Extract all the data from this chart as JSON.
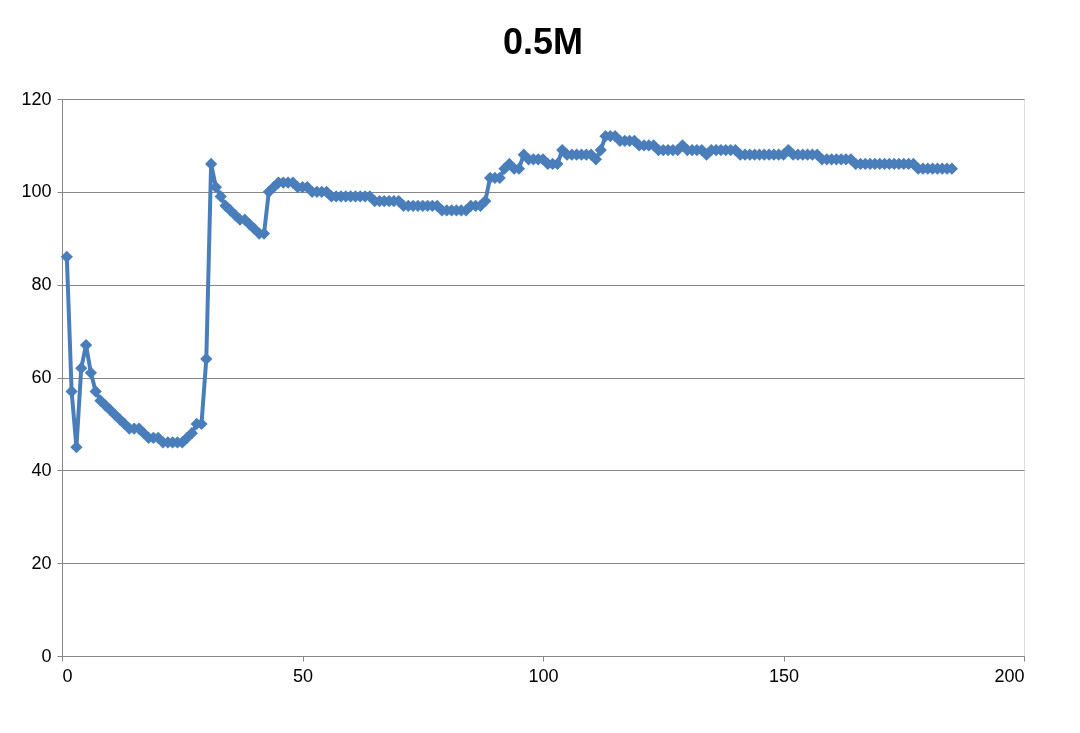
{
  "chart_data": {
    "type": "line",
    "title": "0.5M",
    "x": [
      1,
      2,
      3,
      4,
      5,
      6,
      7,
      8,
      9,
      10,
      11,
      12,
      13,
      14,
      15,
      16,
      17,
      18,
      19,
      20,
      21,
      22,
      23,
      24,
      25,
      26,
      27,
      28,
      29,
      30,
      31,
      32,
      33,
      34,
      35,
      36,
      37,
      38,
      39,
      40,
      41,
      42,
      43,
      44,
      45,
      46,
      47,
      48,
      49,
      50,
      51,
      52,
      53,
      54,
      55,
      56,
      57,
      58,
      59,
      60,
      61,
      62,
      63,
      64,
      65,
      66,
      67,
      68,
      69,
      70,
      71,
      72,
      73,
      74,
      75,
      76,
      77,
      78,
      79,
      80,
      81,
      82,
      83,
      84,
      85,
      86,
      87,
      88,
      89,
      90,
      91,
      92,
      93,
      94,
      95,
      96,
      97,
      98,
      99,
      100,
      101,
      102,
      103,
      104,
      105,
      106,
      107,
      108,
      109,
      110,
      111,
      112,
      113,
      114,
      115,
      116,
      117,
      118,
      119,
      120,
      121,
      122,
      123,
      124,
      125,
      126,
      127,
      128,
      129,
      130,
      131,
      132,
      133,
      134,
      135,
      136,
      137,
      138,
      139,
      140,
      141,
      142,
      143,
      144,
      145,
      146,
      147,
      148,
      149,
      150,
      151,
      152,
      153,
      154,
      155,
      156,
      157,
      158,
      159,
      160,
      161,
      162,
      163,
      164,
      165,
      166,
      167,
      168,
      169,
      170,
      171,
      172,
      173,
      174,
      175,
      176,
      177,
      178,
      179,
      180,
      181,
      182,
      183,
      184,
      185
    ],
    "series": [
      {
        "color": "#4a7ebb",
        "values": [
          86,
          57,
          45,
          62,
          67,
          61,
          57,
          55,
          54,
          53,
          52,
          51,
          50,
          49,
          49,
          49,
          48,
          47,
          47,
          47,
          46,
          46,
          46,
          46,
          46,
          47,
          48,
          50,
          50,
          64,
          106,
          101,
          99,
          97,
          96,
          95,
          94,
          94,
          93,
          92,
          91,
          91,
          100,
          101,
          102,
          102,
          102,
          102,
          101,
          101,
          101,
          100,
          100,
          100,
          100,
          99,
          99,
          99,
          99,
          99,
          99,
          99,
          99,
          99,
          98,
          98,
          98,
          98,
          98,
          98,
          97,
          97,
          97,
          97,
          97,
          97,
          97,
          97,
          96,
          96,
          96,
          96,
          96,
          96,
          97,
          97,
          97,
          98,
          103,
          103,
          103,
          105,
          106,
          105,
          105,
          108,
          107,
          107,
          107,
          107,
          106,
          106,
          106,
          109,
          108,
          108,
          108,
          108,
          108,
          108,
          107,
          109,
          112,
          112,
          112,
          111,
          111,
          111,
          111,
          110,
          110,
          110,
          110,
          109,
          109,
          109,
          109,
          109,
          110,
          109,
          109,
          109,
          109,
          108,
          109,
          109,
          109,
          109,
          109,
          109,
          108,
          108,
          108,
          108,
          108,
          108,
          108,
          108,
          108,
          108,
          109,
          108,
          108,
          108,
          108,
          108,
          108,
          107,
          107,
          107,
          107,
          107,
          107,
          107,
          106,
          106,
          106,
          106,
          106,
          106,
          106,
          106,
          106,
          106,
          106,
          106,
          106,
          105,
          105,
          105,
          105,
          105,
          105,
          105,
          105
        ]
      }
    ],
    "xlim": [
      0,
      200
    ],
    "xticks": [
      0,
      50,
      100,
      150,
      200
    ],
    "ylim": [
      0,
      120
    ],
    "yticks": [
      0,
      20,
      40,
      60,
      80,
      100,
      120
    ],
    "grid": "y",
    "marker": "diamond",
    "line_style": "solid"
  }
}
